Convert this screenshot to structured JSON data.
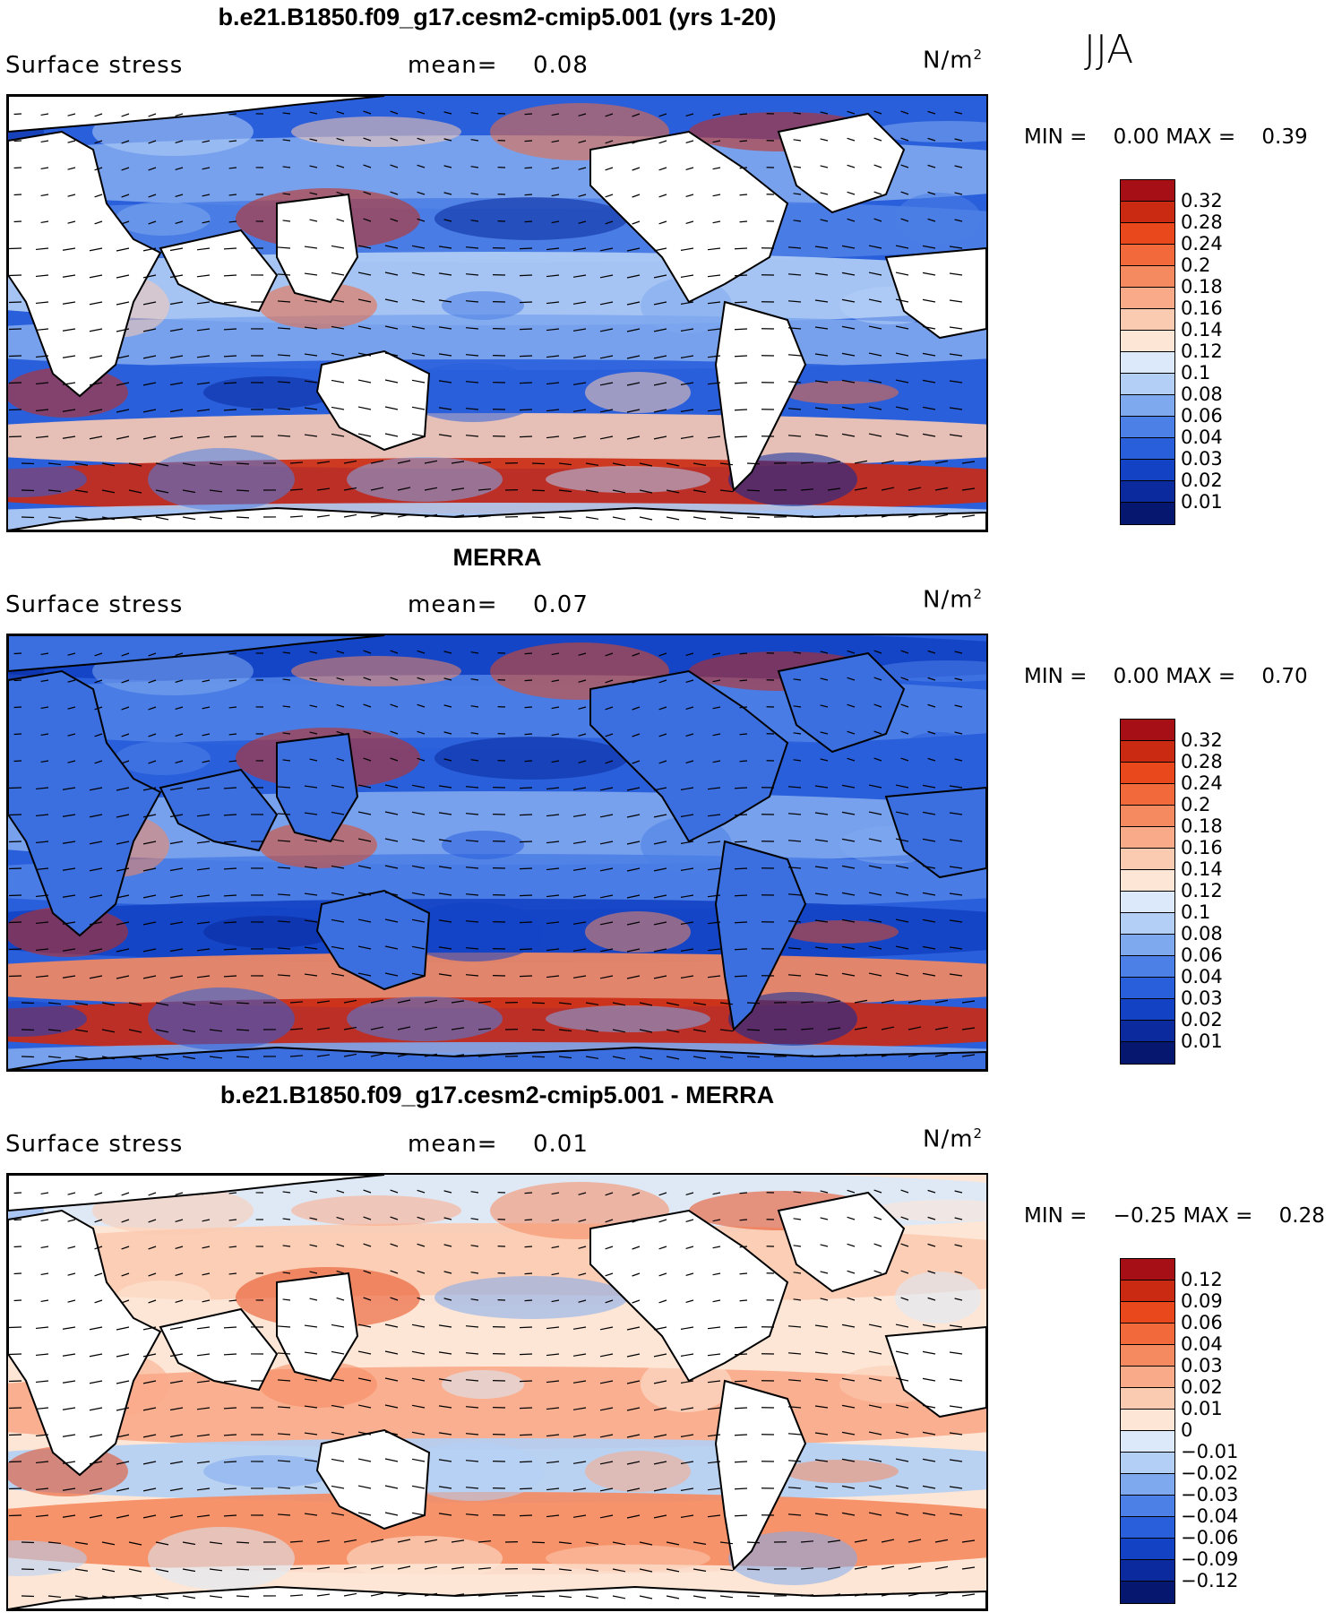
{
  "season": "JJA",
  "variable_label": "Surface stress",
  "units_base": "N/m",
  "units_sup": "2",
  "panels": [
    {
      "title": "b.e21.B1850.f09_g17.cesm2-cmip5.001 (yrs 1-20)",
      "mean_label": "mean=",
      "mean_value": "0.08",
      "min_label": "MIN =",
      "min_value": "0.00",
      "max_label": "MAX =",
      "max_value": "0.39",
      "colorbar_labels": [
        "0.32",
        "0.28",
        "0.24",
        "0.2",
        "0.18",
        "0.16",
        "0.14",
        "0.12",
        "0.1",
        "0.08",
        "0.06",
        "0.04",
        "0.03",
        "0.02",
        "0.01"
      ],
      "colorbar_colors": [
        "#a50f15",
        "#cb2a12",
        "#e8481b",
        "#f26a3b",
        "#f5895f",
        "#f9aa88",
        "#fbcbb1",
        "#fde6d6",
        "#dbe9fa",
        "#b3cff5",
        "#7fa9ee",
        "#4d80e6",
        "#2a5fdc",
        "#1342c4",
        "#0a2a9e",
        "#05176e"
      ]
    },
    {
      "title": "MERRA",
      "mean_label": "mean=",
      "mean_value": "0.07",
      "min_label": "MIN =",
      "min_value": "0.00",
      "max_label": "MAX =",
      "max_value": "0.70",
      "colorbar_labels": [
        "0.32",
        "0.28",
        "0.24",
        "0.2",
        "0.18",
        "0.16",
        "0.14",
        "0.12",
        "0.1",
        "0.08",
        "0.06",
        "0.04",
        "0.03",
        "0.02",
        "0.01"
      ],
      "colorbar_colors": [
        "#a50f15",
        "#cb2a12",
        "#e8481b",
        "#f26a3b",
        "#f5895f",
        "#f9aa88",
        "#fbcbb1",
        "#fde6d6",
        "#dbe9fa",
        "#b3cff5",
        "#7fa9ee",
        "#4d80e6",
        "#2a5fdc",
        "#1342c4",
        "#0a2a9e",
        "#05176e"
      ]
    },
    {
      "title": "b.e21.B1850.f09_g17.cesm2-cmip5.001 - MERRA",
      "mean_label": "mean=",
      "mean_value": "0.01",
      "min_label": "MIN =",
      "min_value": "−0.25",
      "max_label": "MAX =",
      "max_value": "0.28",
      "colorbar_labels": [
        "0.12",
        "0.09",
        "0.06",
        "0.04",
        "0.03",
        "0.02",
        "0.01",
        "0",
        "−0.01",
        "−0.02",
        "−0.03",
        "−0.04",
        "−0.06",
        "−0.09",
        "−0.12"
      ],
      "colorbar_colors": [
        "#a50f15",
        "#cb2a12",
        "#e8481b",
        "#f26a3b",
        "#f5895f",
        "#f9aa88",
        "#fbcbb1",
        "#fde6d6",
        "#dbe9fa",
        "#b3cff5",
        "#7fa9ee",
        "#4d80e6",
        "#2a5fdc",
        "#1342c4",
        "#0a2a9e",
        "#05176e"
      ]
    }
  ]
}
